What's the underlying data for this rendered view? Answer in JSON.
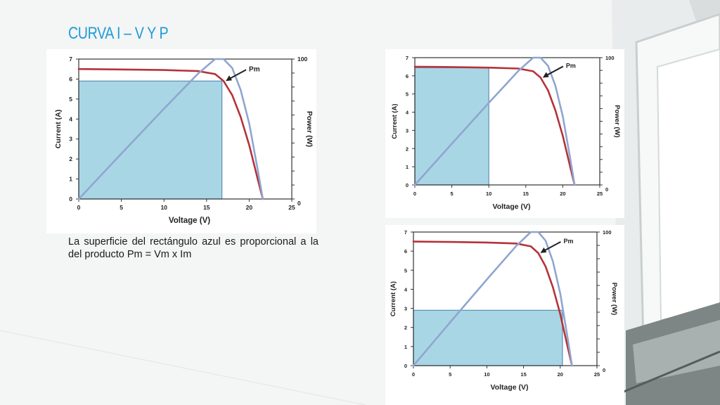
{
  "slide": {
    "title": "CURVA I – V Y P",
    "caption": "La superficie del rectángulo azul es proporcional a la del producto Pm = Vm x Im"
  },
  "colors": {
    "title": "#1f9bd7",
    "current_curve": "#b5323a",
    "power_curve": "#8fa6cf",
    "rectangle_fill": "#a9d6e5",
    "rectangle_stroke": "#5a8fb8"
  },
  "chart_data": [
    {
      "type": "line",
      "xlabel": "Voltage (V)",
      "ylabel": "Current (A)",
      "y2label": "Power (W)",
      "xlim": [
        0,
        25
      ],
      "ylim": [
        0,
        7
      ],
      "y2lim": [
        0,
        100
      ],
      "xticks": [
        "0",
        "5",
        "10",
        "15",
        "20",
        "25"
      ],
      "yticks": [
        "0",
        "1",
        "2",
        "3",
        "4",
        "5",
        "6",
        "7"
      ],
      "y2ticks": [
        "0",
        "100"
      ],
      "annotation": "Pm",
      "rectangle": {
        "v": 16.8,
        "i": 5.9
      },
      "series": [
        {
          "key": "current",
          "axis": "left",
          "x": [
            0,
            5,
            10,
            14,
            16,
            17,
            18,
            19,
            20,
            21,
            21.6
          ],
          "y": [
            6.5,
            6.48,
            6.45,
            6.4,
            6.25,
            5.9,
            5.2,
            4.1,
            2.7,
            1.0,
            0
          ]
        },
        {
          "key": "power",
          "axis": "right",
          "x": [
            0,
            5,
            10,
            14,
            16,
            17,
            18,
            19,
            20,
            21,
            21.6
          ],
          "y": [
            0,
            32.4,
            64.5,
            89.6,
            100,
            100,
            93.6,
            77.9,
            54,
            21,
            0
          ]
        }
      ]
    },
    {
      "type": "line",
      "xlabel": "Voltage (V)",
      "ylabel": "Current (A)",
      "y2label": "Power (W)",
      "xlim": [
        0,
        25
      ],
      "ylim": [
        0,
        7
      ],
      "y2lim": [
        0,
        100
      ],
      "xticks": [
        "0",
        "5",
        "10",
        "15",
        "20",
        "25"
      ],
      "yticks": [
        "0",
        "1",
        "2",
        "3",
        "4",
        "5",
        "6",
        "7"
      ],
      "y2ticks": [
        "0",
        "100"
      ],
      "annotation": "Pm",
      "rectangle": {
        "v": 10,
        "i": 6.45
      },
      "series": [
        {
          "key": "current",
          "axis": "left",
          "x": [
            0,
            5,
            10,
            14,
            16,
            17,
            18,
            19,
            20,
            21,
            21.6
          ],
          "y": [
            6.5,
            6.48,
            6.45,
            6.4,
            6.25,
            5.9,
            5.2,
            4.1,
            2.7,
            1.0,
            0
          ]
        },
        {
          "key": "power",
          "axis": "right",
          "x": [
            0,
            5,
            10,
            14,
            16,
            17,
            18,
            19,
            20,
            21,
            21.6
          ],
          "y": [
            0,
            32.4,
            64.5,
            89.6,
            100,
            100,
            93.6,
            77.9,
            54,
            21,
            0
          ]
        }
      ]
    },
    {
      "type": "line",
      "xlabel": "Voltage (V)",
      "ylabel": "Current (A)",
      "y2label": "Power (W)",
      "xlim": [
        0,
        25
      ],
      "ylim": [
        0,
        7
      ],
      "y2lim": [
        0,
        100
      ],
      "xticks": [
        "0",
        "5",
        "10",
        "15",
        "20",
        "25"
      ],
      "yticks": [
        "0",
        "1",
        "2",
        "3",
        "4",
        "5",
        "6",
        "7"
      ],
      "y2ticks": [
        "0",
        "100"
      ],
      "annotation": "Pm",
      "rectangle": {
        "v": 20.3,
        "i": 2.9
      },
      "series": [
        {
          "key": "current",
          "axis": "left",
          "x": [
            0,
            5,
            10,
            14,
            16,
            17,
            18,
            19,
            20,
            21,
            21.6
          ],
          "y": [
            6.5,
            6.48,
            6.45,
            6.4,
            6.25,
            5.9,
            5.2,
            4.1,
            2.7,
            1.0,
            0
          ]
        },
        {
          "key": "power",
          "axis": "right",
          "x": [
            0,
            5,
            10,
            14,
            16,
            17,
            18,
            19,
            20,
            21,
            21.6
          ],
          "y": [
            0,
            32.4,
            64.5,
            89.6,
            100,
            100,
            93.6,
            77.9,
            54,
            21,
            0
          ]
        }
      ]
    }
  ]
}
